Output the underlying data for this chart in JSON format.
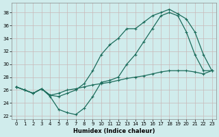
{
  "xlabel": "Humidex (Indice chaleur)",
  "background_color": "#d0ecec",
  "grid_color": "#c0d8d8",
  "line_color": "#1a6b5a",
  "xlim": [
    -0.5,
    23.5
  ],
  "ylim": [
    21.5,
    39.5
  ],
  "yticks": [
    22,
    24,
    26,
    28,
    30,
    32,
    34,
    36,
    38
  ],
  "xticks": [
    0,
    1,
    2,
    3,
    4,
    5,
    6,
    7,
    8,
    9,
    10,
    11,
    12,
    13,
    14,
    15,
    16,
    17,
    18,
    19,
    20,
    21,
    22,
    23
  ],
  "line1_x": [
    0,
    1,
    2,
    3,
    4,
    5,
    6,
    7,
    8,
    9,
    10,
    11,
    12,
    13,
    14,
    15,
    16,
    17,
    18,
    19,
    20,
    21,
    22,
    23
  ],
  "line1_y": [
    26.5,
    26.0,
    25.5,
    26.2,
    25.0,
    23.0,
    22.5,
    22.2,
    23.2,
    25.0,
    27.2,
    27.5,
    28.0,
    30.0,
    31.5,
    33.5,
    35.5,
    37.5,
    38.0,
    37.5,
    35.0,
    31.5,
    29.0,
    29.0
  ],
  "line2_x": [
    0,
    1,
    2,
    3,
    4,
    5,
    6,
    7,
    8,
    9,
    10,
    11,
    12,
    13,
    14,
    15,
    16,
    17,
    18,
    19,
    20,
    21,
    22,
    23
  ],
  "line2_y": [
    26.5,
    26.0,
    25.5,
    26.2,
    25.2,
    25.0,
    25.5,
    26.0,
    27.0,
    29.0,
    31.5,
    33.0,
    34.0,
    35.5,
    35.5,
    36.5,
    37.5,
    38.0,
    38.5,
    37.8,
    37.0,
    35.0,
    31.5,
    29.0
  ],
  "line3_x": [
    0,
    1,
    2,
    3,
    4,
    5,
    6,
    7,
    8,
    9,
    10,
    11,
    12,
    13,
    14,
    15,
    16,
    17,
    18,
    19,
    20,
    21,
    22,
    23
  ],
  "line3_y": [
    26.5,
    26.0,
    25.5,
    26.2,
    25.2,
    25.5,
    26.0,
    26.2,
    26.5,
    26.8,
    27.0,
    27.2,
    27.5,
    27.8,
    28.0,
    28.2,
    28.5,
    28.8,
    29.0,
    29.0,
    29.0,
    28.8,
    28.5,
    29.0
  ]
}
